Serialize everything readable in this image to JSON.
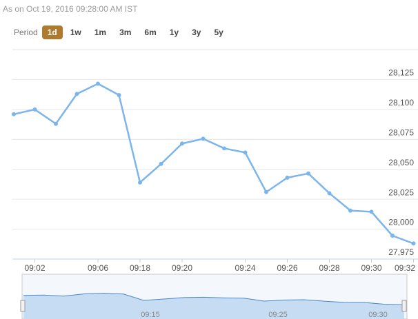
{
  "header": {
    "as_of": "As on Oct 19, 2016 09:28:00 AM IST",
    "period_label": "Period",
    "periods": [
      {
        "label": "1d",
        "active": true
      },
      {
        "label": "1w",
        "active": false
      },
      {
        "label": "1m",
        "active": false
      },
      {
        "label": "3m",
        "active": false
      },
      {
        "label": "6m",
        "active": false
      },
      {
        "label": "1y",
        "active": false
      },
      {
        "label": "3y",
        "active": false
      },
      {
        "label": "5y",
        "active": false
      }
    ]
  },
  "chart_data": {
    "type": "line",
    "categories": [
      null,
      "09:02",
      null,
      null,
      "09:06",
      null,
      "09:18",
      null,
      "09:20",
      null,
      null,
      "09:24",
      null,
      "09:26",
      null,
      "09:28",
      null,
      "09:30",
      null,
      "09:32"
    ],
    "values": [
      28096,
      28100,
      28088,
      28113,
      28121.5,
      28112,
      28039,
      28054.5,
      28071.5,
      28075.5,
      28067.5,
      28064,
      28031,
      28043,
      28046.5,
      28030,
      28015.5,
      28014.5,
      27994.5,
      27988
    ],
    "color": "#7cb5ec",
    "ylim": [
      27975,
      28150
    ],
    "yticks": [
      {
        "value": 27975,
        "label": "27,975"
      },
      {
        "value": 28000,
        "label": "28,000"
      },
      {
        "value": 28025,
        "label": "28,025"
      },
      {
        "value": 28050,
        "label": "28,050"
      },
      {
        "value": 28075,
        "label": "28,075"
      },
      {
        "value": 28100,
        "label": "28,100"
      },
      {
        "value": 28125,
        "label": "28,125"
      }
    ],
    "grid": true,
    "navigator_labels": [
      "09:15",
      "09:25",
      "09:30"
    ]
  }
}
